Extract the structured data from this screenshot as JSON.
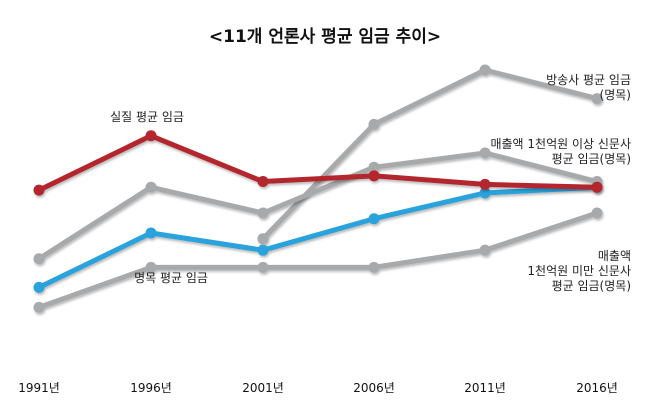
{
  "chart_data": {
    "type": "line",
    "title": "<11개 언론사 평균 임금 추이>",
    "xlabel": "",
    "ylabel": "",
    "categories": [
      "1991년",
      "1996년",
      "2001년",
      "2006년",
      "2011년",
      "2016년"
    ],
    "ylim": [
      0,
      100
    ],
    "grid": false,
    "series": [
      {
        "name": "실질 평균 임금",
        "color": "#b3282d",
        "points": [
          [
            0,
            58
          ],
          [
            1,
            77
          ],
          [
            2,
            61
          ],
          [
            3,
            63
          ],
          [
            4,
            60
          ],
          [
            5,
            59
          ]
        ]
      },
      {
        "name": "명목 평균 임금",
        "color": "#2aa2dc",
        "points": [
          [
            0,
            24
          ],
          [
            1,
            43
          ],
          [
            2,
            37
          ],
          [
            3,
            48
          ],
          [
            4,
            57
          ],
          [
            5,
            59
          ]
        ]
      },
      {
        "name": "방송사 평균 임금(명목)",
        "color": "#a8a9ab",
        "points": [
          [
            2,
            41
          ],
          [
            3,
            81
          ],
          [
            4,
            100
          ],
          [
            5,
            90
          ]
        ]
      },
      {
        "name": "매출액 1천억원 이상 신문사 평균 임금(명목)",
        "color": "#a8a9ab",
        "points": [
          [
            0,
            34
          ],
          [
            1,
            59
          ],
          [
            2,
            50
          ],
          [
            3,
            66
          ],
          [
            4,
            71
          ],
          [
            5,
            61
          ]
        ]
      },
      {
        "name": "매출액 1천억원 미만 신문사 평균 임금(명목)",
        "color": "#a8a9ab",
        "points": [
          [
            0,
            17
          ],
          [
            1,
            31
          ],
          [
            2,
            31
          ],
          [
            3,
            31
          ],
          [
            4,
            37
          ],
          [
            5,
            50
          ]
        ]
      }
    ],
    "annotations": [
      {
        "key": "real",
        "lines": [
          "실질 평균 임금"
        ]
      },
      {
        "key": "nominal",
        "lines": [
          "명목 평균 임금"
        ]
      },
      {
        "key": "broadcast",
        "lines": [
          "방송사 평균 임금",
          "(명목)"
        ]
      },
      {
        "key": "large",
        "lines": [
          "매출액 1천억원 이상 신문사",
          "평균 임금(명목)"
        ]
      },
      {
        "key": "small",
        "lines": [
          "매출액",
          "1천억원 미만 신문사",
          "평균 임금(명목)"
        ]
      }
    ]
  }
}
